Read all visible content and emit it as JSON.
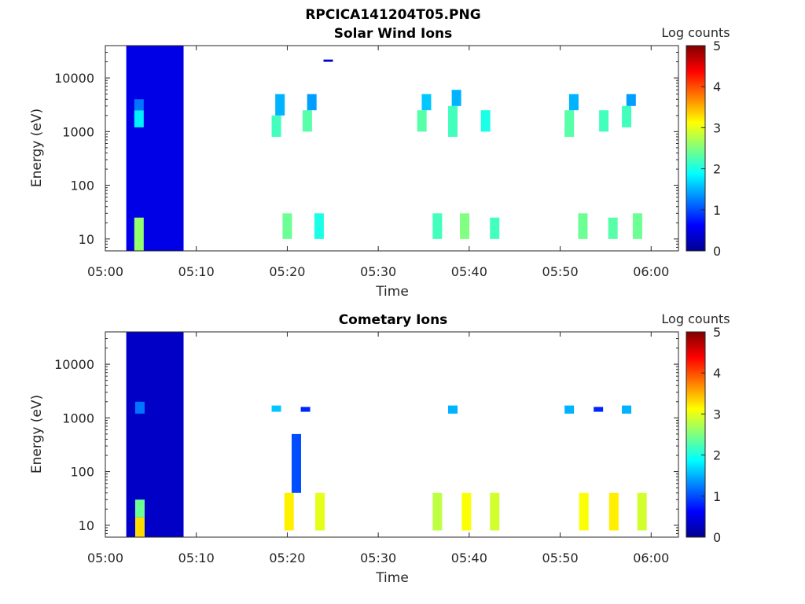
{
  "figure": {
    "title": "RPCICA141204T05.PNG"
  },
  "chart_data": [
    {
      "type": "heatmap",
      "title": "Solar Wind Ions",
      "xlabel": "Time",
      "ylabel": "Energy (eV)",
      "x_ticks": [
        "05:00",
        "05:10",
        "05:20",
        "05:30",
        "05:40",
        "05:50",
        "06:00"
      ],
      "x_range": [
        "05:00",
        "06:03"
      ],
      "y_ticks": [
        {
          "value": 10,
          "label": "10"
        },
        {
          "value": 100,
          "label": "100"
        },
        {
          "value": 1000,
          "label": "1000"
        },
        {
          "value": 10000,
          "label": "10000"
        }
      ],
      "y_range": [
        6,
        40000
      ],
      "y_scale": "log",
      "colorbar": {
        "label": "Log counts",
        "range": [
          0,
          5
        ],
        "ticks": [
          "0",
          "1",
          "2",
          "3",
          "4",
          "5"
        ],
        "colormap": "jet"
      },
      "background_block": {
        "t_start": 2.3,
        "t_end": 8.6,
        "e_min": 6,
        "e_max": 40000,
        "level": 0.5
      },
      "cells": [
        {
          "t": 3.7,
          "e_lo": 6,
          "e_hi": 25,
          "level": 2.6
        },
        {
          "t": 3.7,
          "e_lo": 1200,
          "e_hi": 2500,
          "level": 1.8
        },
        {
          "t": 3.7,
          "e_lo": 2500,
          "e_hi": 4000,
          "level": 1.2
        },
        {
          "t": 18.8,
          "e_lo": 800,
          "e_hi": 2000,
          "level": 2.2
        },
        {
          "t": 19.2,
          "e_lo": 2000,
          "e_hi": 5000,
          "level": 1.5
        },
        {
          "t": 22.2,
          "e_lo": 1000,
          "e_hi": 2500,
          "level": 2.3
        },
        {
          "t": 22.7,
          "e_lo": 2500,
          "e_hi": 5000,
          "level": 1.4
        },
        {
          "t": 24.5,
          "e_lo": 20000,
          "e_hi": 22000,
          "level": 0.3
        },
        {
          "t": 20.0,
          "e_lo": 10,
          "e_hi": 30,
          "level": 2.4
        },
        {
          "t": 23.5,
          "e_lo": 10,
          "e_hi": 30,
          "level": 2.0
        },
        {
          "t": 34.8,
          "e_lo": 1000,
          "e_hi": 2500,
          "level": 2.3
        },
        {
          "t": 35.3,
          "e_lo": 2500,
          "e_hi": 5000,
          "level": 1.6
        },
        {
          "t": 38.2,
          "e_lo": 800,
          "e_hi": 3000,
          "level": 2.2
        },
        {
          "t": 38.6,
          "e_lo": 3000,
          "e_hi": 6000,
          "level": 1.5
        },
        {
          "t": 41.8,
          "e_lo": 1000,
          "e_hi": 2500,
          "level": 2.0
        },
        {
          "t": 36.5,
          "e_lo": 10,
          "e_hi": 30,
          "level": 2.2
        },
        {
          "t": 39.5,
          "e_lo": 10,
          "e_hi": 30,
          "level": 2.5
        },
        {
          "t": 42.8,
          "e_lo": 10,
          "e_hi": 25,
          "level": 2.2
        },
        {
          "t": 51.0,
          "e_lo": 800,
          "e_hi": 2500,
          "level": 2.3
        },
        {
          "t": 51.5,
          "e_lo": 2500,
          "e_hi": 5000,
          "level": 1.5
        },
        {
          "t": 54.8,
          "e_lo": 1000,
          "e_hi": 2500,
          "level": 2.2
        },
        {
          "t": 57.3,
          "e_lo": 1200,
          "e_hi": 3000,
          "level": 2.2
        },
        {
          "t": 57.8,
          "e_lo": 3000,
          "e_hi": 5000,
          "level": 1.4
        },
        {
          "t": 52.5,
          "e_lo": 10,
          "e_hi": 30,
          "level": 2.4
        },
        {
          "t": 55.8,
          "e_lo": 10,
          "e_hi": 25,
          "level": 2.3
        },
        {
          "t": 58.5,
          "e_lo": 10,
          "e_hi": 30,
          "level": 2.4
        }
      ]
    },
    {
      "type": "heatmap",
      "title": "Cometary Ions",
      "xlabel": "Time",
      "ylabel": "Energy (eV)",
      "x_ticks": [
        "05:00",
        "05:10",
        "05:20",
        "05:30",
        "05:40",
        "05:50",
        "06:00"
      ],
      "x_range": [
        "05:00",
        "06:03"
      ],
      "y_ticks": [
        {
          "value": 10,
          "label": "10"
        },
        {
          "value": 100,
          "label": "100"
        },
        {
          "value": 1000,
          "label": "1000"
        },
        {
          "value": 10000,
          "label": "10000"
        }
      ],
      "y_range": [
        6,
        40000
      ],
      "y_scale": "log",
      "colorbar": {
        "label": "Log counts",
        "range": [
          0,
          5
        ],
        "ticks": [
          "0",
          "1",
          "2",
          "3",
          "4",
          "5"
        ],
        "colormap": "jet"
      },
      "background_block": {
        "t_start": 2.3,
        "t_end": 8.6,
        "e_min": 6,
        "e_max": 40000,
        "level": 0.35
      },
      "cells": [
        {
          "t": 3.8,
          "e_lo": 6,
          "e_hi": 14,
          "level": 3.3
        },
        {
          "t": 3.8,
          "e_lo": 14,
          "e_hi": 30,
          "level": 2.4
        },
        {
          "t": 3.8,
          "e_lo": 1200,
          "e_hi": 2000,
          "level": 1.2
        },
        {
          "t": 18.8,
          "e_lo": 1300,
          "e_hi": 1700,
          "level": 1.6
        },
        {
          "t": 22.0,
          "e_lo": 1300,
          "e_hi": 1600,
          "level": 0.8
        },
        {
          "t": 38.2,
          "e_lo": 1200,
          "e_hi": 1700,
          "level": 1.5
        },
        {
          "t": 51.0,
          "e_lo": 1200,
          "e_hi": 1700,
          "level": 1.5
        },
        {
          "t": 54.2,
          "e_lo": 1300,
          "e_hi": 1600,
          "level": 0.8
        },
        {
          "t": 57.3,
          "e_lo": 1200,
          "e_hi": 1700,
          "level": 1.5
        },
        {
          "t": 20.2,
          "e_lo": 8,
          "e_hi": 40,
          "level": 3.2
        },
        {
          "t": 23.6,
          "e_lo": 8,
          "e_hi": 40,
          "level": 3.0
        },
        {
          "t": 21.0,
          "e_lo": 40,
          "e_hi": 500,
          "level": 1.0
        },
        {
          "t": 36.5,
          "e_lo": 8,
          "e_hi": 40,
          "level": 2.8
        },
        {
          "t": 39.7,
          "e_lo": 8,
          "e_hi": 40,
          "level": 3.1
        },
        {
          "t": 42.8,
          "e_lo": 8,
          "e_hi": 40,
          "level": 2.9
        },
        {
          "t": 52.6,
          "e_lo": 8,
          "e_hi": 40,
          "level": 3.1
        },
        {
          "t": 55.9,
          "e_lo": 8,
          "e_hi": 40,
          "level": 3.2
        },
        {
          "t": 59.0,
          "e_lo": 8,
          "e_hi": 40,
          "level": 2.9
        }
      ]
    }
  ]
}
